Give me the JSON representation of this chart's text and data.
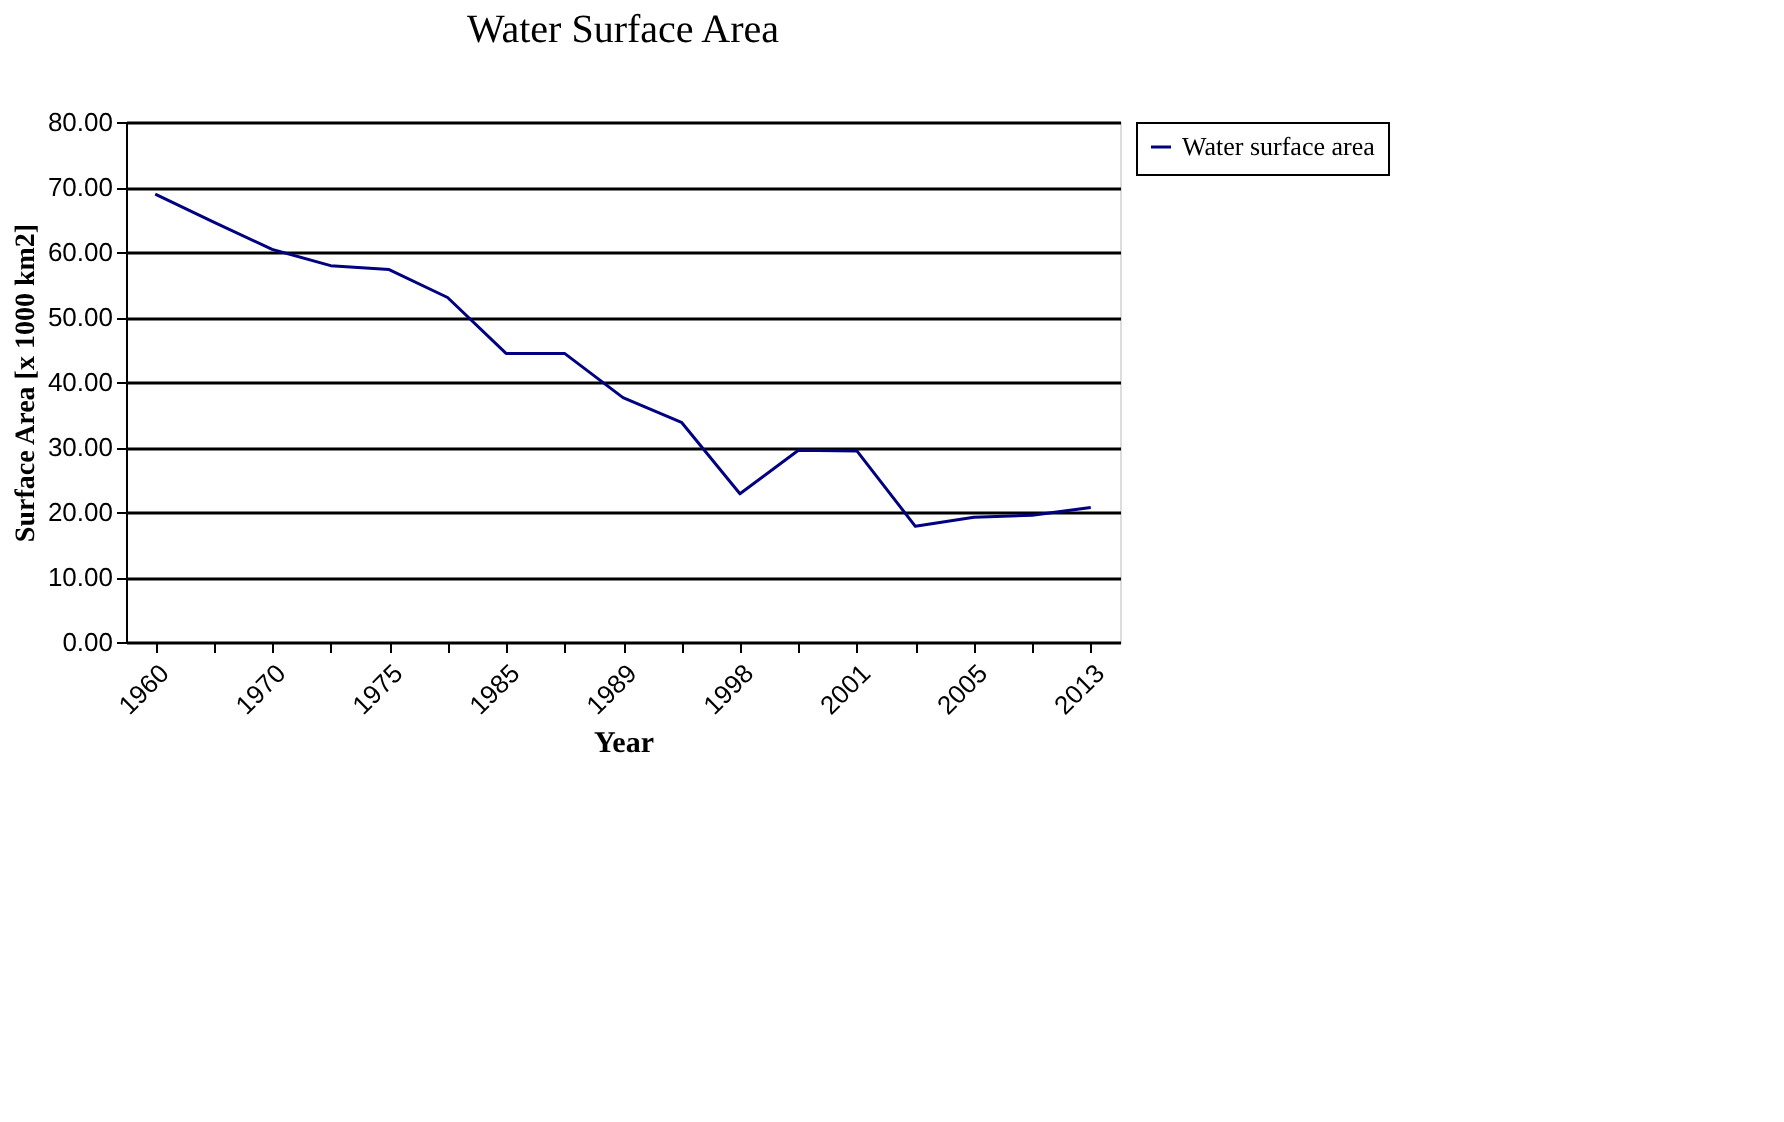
{
  "chart_data": {
    "type": "line",
    "title": "Water Surface Area",
    "xlabel": "Year",
    "ylabel": "Surface Area [x 1000 km2]",
    "categories": [
      "1960",
      null,
      "1970",
      null,
      "1975",
      null,
      "1985",
      null,
      "1989",
      null,
      "1998",
      null,
      "2001",
      null,
      "2005",
      null,
      "2013"
    ],
    "series": [
      {
        "name": "Water surface area",
        "color": "#000080",
        "values": [
          68.9,
          64.6,
          60.4,
          57.9,
          57.3,
          53.0,
          44.4,
          44.4,
          37.6,
          33.8,
          22.8,
          29.5,
          29.4,
          17.8,
          19.2,
          19.5,
          20.7
        ]
      }
    ],
    "ylim": [
      0,
      80
    ],
    "yticks": [
      {
        "value": 0,
        "label": "0.00"
      },
      {
        "value": 10,
        "label": "10.00"
      },
      {
        "value": 20,
        "label": "20.00"
      },
      {
        "value": 30,
        "label": "30.00"
      },
      {
        "value": 40,
        "label": "40.00"
      },
      {
        "value": 50,
        "label": "50.00"
      },
      {
        "value": 60,
        "label": "60.00"
      },
      {
        "value": 70,
        "label": "70.00"
      },
      {
        "value": 80,
        "label": "80.00"
      }
    ],
    "grid": "y",
    "legend": "right",
    "marker": "none",
    "line_style": "solid"
  }
}
